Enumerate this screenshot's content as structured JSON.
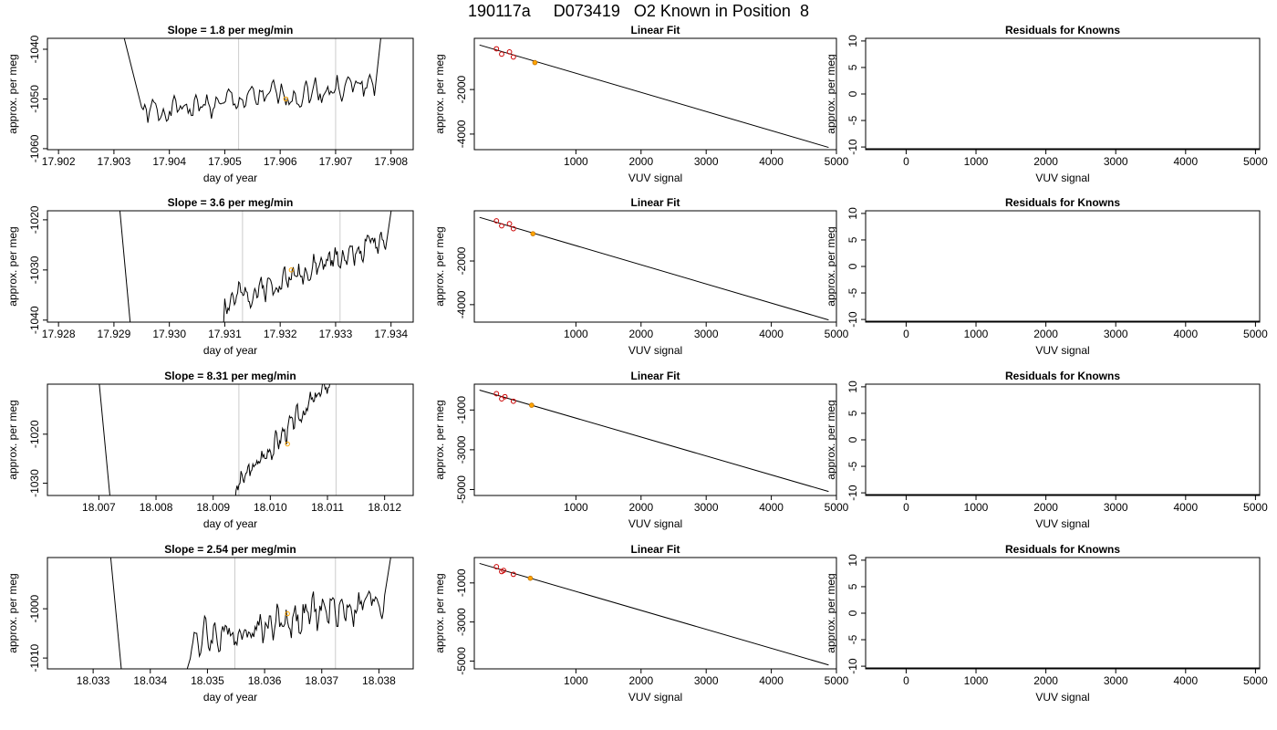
{
  "title": "190117a     D073419   O2 Known in Position  8",
  "colors": {
    "line": "#000000",
    "vline": "#cccccc",
    "point": "#cc0000",
    "highlight": "#ffa500"
  },
  "chart_data": [
    {
      "row": 0,
      "type": "line",
      "title": "Slope =  1.8  per meg/min",
      "xlabel": "day of year",
      "ylabel": "approx. per meg",
      "xlim": [
        17.9018,
        17.9084
      ],
      "ylim": [
        -1060.2,
        -1037.8
      ],
      "xticks": [
        "17.902",
        "17.903",
        "17.904",
        "17.905",
        "17.906",
        "17.907",
        "17.908"
      ],
      "yticks": [
        "-1060",
        "-1050",
        "-1040"
      ],
      "vlines": [
        17.90525,
        17.907
      ],
      "base": -1053,
      "trend": 6.1,
      "amp": 1.7,
      "seed": 1,
      "start": 17.9031,
      "enterFrom": -1034,
      "enterEnd": 17.9035,
      "end": 17.9077,
      "endTo": -1036,
      "highlight": [
        17.9061,
        -1050
      ]
    },
    {
      "row": 0,
      "type": "scatter",
      "title": "Linear Fit",
      "xlabel": "VUV signal",
      "ylabel": "approx. per meg",
      "xlim": [
        -560,
        5000
      ],
      "ylim": [
        -4700,
        300
      ],
      "xticks": [
        "1000",
        "2000",
        "3000",
        "4000",
        "5000"
      ],
      "yticks": [
        "-4000",
        "-2000"
      ],
      "fit": [
        [
          -480,
          0
        ],
        [
          4880,
          -4600
        ]
      ],
      "points": [
        [
          -220,
          -170
        ],
        [
          -140,
          -410
        ],
        [
          -20,
          -310
        ],
        [
          40,
          -540
        ]
      ],
      "highlight": [
        370,
        -790
      ]
    },
    {
      "row": 0,
      "type": "residual",
      "title": "Residuals for Knowns",
      "xlabel": "VUV signal",
      "ylabel": "approx. per meg",
      "xlim": [
        -580,
        5060
      ],
      "ylim": [
        -10.5,
        10.5
      ],
      "xticks": [
        "0",
        "1000",
        "2000",
        "3000",
        "4000",
        "5000"
      ],
      "yticks": [
        "-10",
        "-5",
        "0",
        "5",
        "10"
      ]
    },
    {
      "row": 1,
      "type": "line",
      "title": "Slope =  3.6  per meg/min",
      "xlabel": "day of year",
      "ylabel": "approx. per meg",
      "xlim": [
        17.9278,
        17.9344
      ],
      "ylim": [
        -1040.4,
        -1018.2
      ],
      "xticks": [
        "17.928",
        "17.929",
        "17.930",
        "17.931",
        "17.932",
        "17.933",
        "17.934"
      ],
      "yticks": [
        "-1040",
        "-1030",
        "-1020"
      ],
      "vlines": [
        17.93132,
        17.93308
      ],
      "base": -1036.5,
      "trend": 12.6,
      "amp": 1.6,
      "seed": 2,
      "start": 17.9309,
      "enterFrom": -1060,
      "enterEnd": 17.931,
      "end": 17.9339,
      "endTo": -1016,
      "spike": [
        17.9291,
        17.9293
      ],
      "highlight": [
        17.9322,
        -1030
      ]
    },
    {
      "row": 1,
      "type": "scatter",
      "title": "Linear Fit",
      "xlabel": "VUV signal",
      "ylabel": "approx. per meg",
      "xlim": [
        -560,
        5000
      ],
      "ylim": [
        -4800,
        300
      ],
      "xticks": [
        "1000",
        "2000",
        "3000",
        "4000",
        "5000"
      ],
      "yticks": [
        "-4000",
        "-2000"
      ],
      "fit": [
        [
          -480,
          0
        ],
        [
          4880,
          -4700
        ]
      ],
      "points": [
        [
          -220,
          -160
        ],
        [
          -140,
          -390
        ],
        [
          -20,
          -290
        ],
        [
          40,
          -520
        ]
      ],
      "highlight": [
        340,
        -750
      ]
    },
    {
      "row": 1,
      "type": "residual",
      "title": "Residuals for Knowns",
      "xlabel": "VUV signal",
      "ylabel": "approx. per meg",
      "xlim": [
        -580,
        5060
      ],
      "ylim": [
        -10.5,
        10.5
      ],
      "xticks": [
        "0",
        "1000",
        "2000",
        "3000",
        "4000",
        "5000"
      ],
      "yticks": [
        "-10",
        "-5",
        "0",
        "5",
        "10"
      ]
    },
    {
      "row": 2,
      "type": "line",
      "title": "Slope =  8.31  per meg/min",
      "xlabel": "day of year",
      "ylabel": "approx. per meg",
      "xlim": [
        18.0061,
        18.0125
      ],
      "ylim": [
        -1032.5,
        -1009.8
      ],
      "xticks": [
        "18.007",
        "18.008",
        "18.009",
        "18.010",
        "18.011",
        "18.012"
      ],
      "yticks": [
        "-1030",
        "-1020"
      ],
      "vlines": [
        18.00945,
        18.01115
      ],
      "base": -1030.8,
      "trend": 34,
      "amp": 1.4,
      "seed": 3,
      "start": 18.0093,
      "enterFrom": -1045,
      "enterEnd": 18.0094,
      "end": 18.012,
      "endTo": -1005,
      "spike": [
        18.007,
        18.0072
      ],
      "highlight": [
        18.0103,
        -1022
      ]
    },
    {
      "row": 2,
      "type": "scatter",
      "title": "Linear Fit",
      "xlabel": "VUV signal",
      "ylabel": "approx. per meg",
      "xlim": [
        -560,
        5000
      ],
      "ylim": [
        -5300,
        300
      ],
      "xticks": [
        "1000",
        "2000",
        "3000",
        "4000",
        "5000"
      ],
      "yticks": [
        "-5000",
        "-3000",
        "-1000"
      ],
      "fit": [
        [
          -480,
          0
        ],
        [
          4880,
          -5100
        ]
      ],
      "points": [
        [
          -220,
          -180
        ],
        [
          -140,
          -440
        ],
        [
          -90,
          -330
        ],
        [
          40,
          -560
        ]
      ],
      "highlight": [
        320,
        -760
      ]
    },
    {
      "row": 2,
      "type": "residual",
      "title": "Residuals for Knowns",
      "xlabel": "VUV signal",
      "ylabel": "approx. per meg",
      "xlim": [
        -580,
        5060
      ],
      "ylim": [
        -10.5,
        10.5
      ],
      "xticks": [
        "0",
        "1000",
        "2000",
        "3000",
        "4000",
        "5000"
      ],
      "yticks": [
        "-10",
        "-5",
        "0",
        "5",
        "10"
      ]
    },
    {
      "row": 3,
      "type": "line",
      "title": "Slope =  2.54  per meg/min",
      "xlabel": "day of year",
      "ylabel": "approx. per meg",
      "xlim": [
        18.0322,
        18.0386
      ],
      "ylim": [
        -1012.2,
        -989.6
      ],
      "xticks": [
        "18.033",
        "18.034",
        "18.035",
        "18.036",
        "18.037",
        "18.038"
      ],
      "yticks": [
        "-1010",
        "-1000"
      ],
      "vlines": [
        18.03548,
        18.03724
      ],
      "base": -1006.5,
      "trend": 8.4,
      "amp": 2.4,
      "seed": 4,
      "start": 18.0346,
      "enterFrom": -1014,
      "enterEnd": 18.0347,
      "end": 18.0381,
      "endTo": -988,
      "spike": [
        18.0333,
        18.0335
      ],
      "highlight": [
        18.0364,
        -1001
      ]
    },
    {
      "row": 3,
      "type": "scatter",
      "title": "Linear Fit",
      "xlabel": "VUV signal",
      "ylabel": "approx. per meg",
      "xlim": [
        -560,
        5000
      ],
      "ylim": [
        -5400,
        300
      ],
      "xticks": [
        "1000",
        "2000",
        "3000",
        "4000",
        "5000"
      ],
      "yticks": [
        "-5000",
        "-3000",
        "-1000"
      ],
      "fit": [
        [
          -480,
          0
        ],
        [
          4880,
          -5200
        ]
      ],
      "points": [
        [
          -220,
          -170
        ],
        [
          -140,
          -420
        ],
        [
          -110,
          -360
        ],
        [
          40,
          -560
        ]
      ],
      "highlight": [
        300,
        -760
      ]
    },
    {
      "row": 3,
      "type": "residual",
      "title": "Residuals for Knowns",
      "xlabel": "VUV signal",
      "ylabel": "approx. per meg",
      "xlim": [
        -580,
        5060
      ],
      "ylim": [
        -10.5,
        10.5
      ],
      "xticks": [
        "0",
        "1000",
        "2000",
        "3000",
        "4000",
        "5000"
      ],
      "yticks": [
        "-10",
        "-5",
        "0",
        "5",
        "10"
      ]
    }
  ]
}
